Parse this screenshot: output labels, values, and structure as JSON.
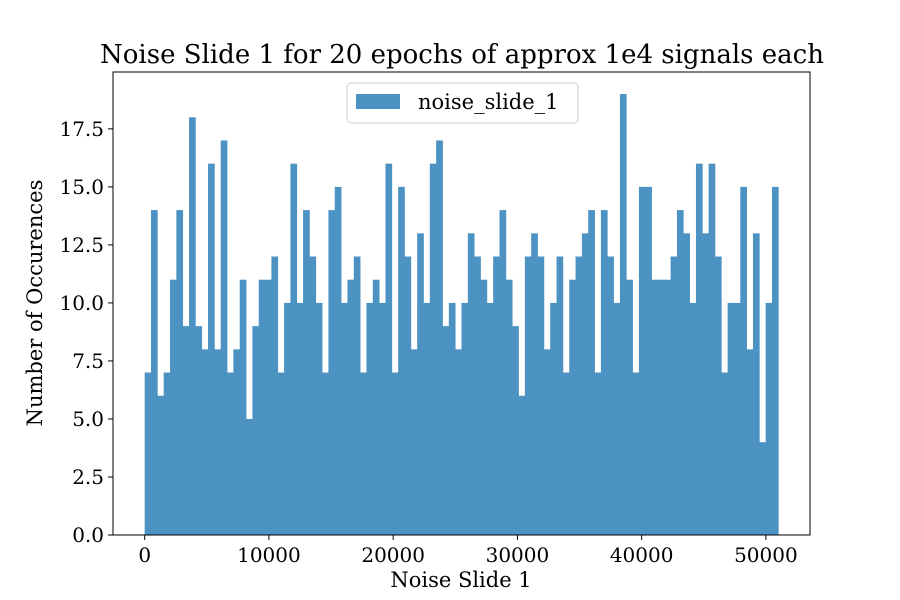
{
  "chart_data": {
    "type": "bar",
    "title": "Noise Slide 1 for 20 epochs of approx 1e4 signals each",
    "xlabel": "Noise Slide 1",
    "ylabel": "Number of Occurences",
    "legend": {
      "label": "noise_slide_1",
      "placement": "top-center"
    },
    "color": "#4c92c3",
    "xlim": [
      -2550,
      53550
    ],
    "ylim": [
      0,
      19.95
    ],
    "xticks": [
      0,
      10000,
      20000,
      30000,
      40000,
      50000
    ],
    "xtick_labels": [
      "0",
      "10000",
      "20000",
      "30000",
      "40000",
      "50000"
    ],
    "yticks": [
      0,
      2.5,
      5,
      7.5,
      10,
      12.5,
      15,
      17.5
    ],
    "ytick_labels": [
      "0.0",
      "2.5",
      "5.0",
      "7.5",
      "10.0",
      "12.5",
      "15.0",
      "17.5"
    ],
    "bin_range": [
      0,
      51000
    ],
    "bin_count": 100,
    "values": [
      7,
      14,
      6,
      7,
      11,
      14,
      9,
      18,
      9,
      8,
      16,
      8,
      17,
      7,
      8,
      11,
      5,
      9,
      11,
      11,
      12,
      7,
      10,
      16,
      10,
      14,
      12,
      10,
      7,
      14,
      15,
      10,
      11,
      12,
      7,
      10,
      11,
      10,
      16,
      7,
      15,
      12,
      8,
      13,
      10,
      16,
      17,
      9,
      10,
      8,
      10,
      13,
      12,
      11,
      10,
      12,
      14,
      11,
      9,
      6,
      12,
      13,
      12,
      8,
      10,
      12,
      7,
      11,
      12,
      13,
      14,
      7,
      14,
      12,
      10,
      19,
      11,
      7,
      15,
      15,
      11,
      11,
      11,
      12,
      14,
      13,
      10,
      16,
      13,
      16,
      12,
      7,
      10,
      10,
      15,
      8,
      13,
      4,
      10,
      15
    ]
  }
}
